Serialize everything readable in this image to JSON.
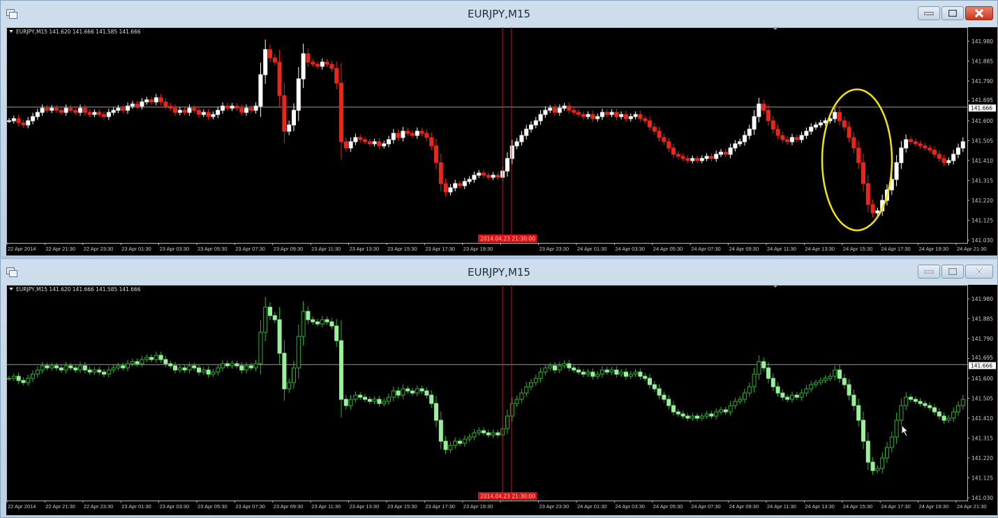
{
  "windows": [
    {
      "title": "EURJPY,M15",
      "active": true,
      "style": "red-white",
      "legend": "EURJPY,M15  141.620 141.666 141.585 141.666",
      "highlight_ellipse": true
    },
    {
      "title": "EURJPY,M15",
      "active": false,
      "style": "green",
      "legend": "EURJPY,M15  141.620 141.666 141.585 141.666",
      "highlight_ellipse": false
    }
  ],
  "icons": {
    "app": "chart-window-icon",
    "minimize": "minimize-icon",
    "maximize": "maximize-icon",
    "close": "close-icon",
    "cursor": "mouse-pointer-icon"
  },
  "colors": {
    "bull_top": "#ffffff",
    "bear_top": "#e8261a",
    "bull_bottom_border": "#2fb52f",
    "bear_bottom": "#98f098",
    "bid_line": "#9a9a9a",
    "cursor_line": "#d01010",
    "highlight": "#f2e600",
    "time_cursor_bg": "#e01010"
  },
  "chart_data": {
    "type": "candlestick",
    "symbol": "EURJPY",
    "timeframe": "M15",
    "ylim": [
      141.03,
      141.98
    ],
    "price_ticks": [
      "141.980",
      "141.885",
      "141.790",
      "141.695",
      "141.600",
      "141.505",
      "141.410",
      "141.315",
      "141.220",
      "141.125",
      "141.030"
    ],
    "bid": "141.666",
    "time_labels": [
      "22 Apr 2014",
      "22 Apr 21:30",
      "22 Apr 23:30",
      "23 Apr 01:30",
      "23 Apr 03:30",
      "23 Apr 05:30",
      "23 Apr 07:30",
      "23 Apr 09:30",
      "23 Apr 11:30",
      "23 Apr 13:30",
      "23 Apr 15:30",
      "23 Apr 17:30",
      "23 Apr 19:30",
      "",
      "23 Apr 23:30",
      "24 Apr 01:30",
      "24 Apr 03:30",
      "24 Apr 05:30",
      "24 Apr 07:30",
      "24 Apr 09:30",
      "24 Apr 11:30",
      "24 Apr 13:30",
      "24 Apr 15:30",
      "24 Apr 17:30",
      "24 Apr 19:30",
      "24 Apr 21:30"
    ],
    "time_cursor": "2014.04.23 21:30:00",
    "close": [
      141.6,
      141.61,
      141.59,
      141.58,
      141.6,
      141.62,
      141.64,
      141.66,
      141.65,
      141.66,
      141.65,
      141.64,
      141.66,
      141.65,
      141.64,
      141.66,
      141.64,
      141.63,
      141.64,
      141.63,
      141.62,
      141.64,
      141.65,
      141.66,
      141.65,
      141.67,
      141.68,
      141.67,
      141.69,
      141.7,
      141.69,
      141.71,
      141.69,
      141.67,
      141.66,
      141.64,
      141.65,
      141.64,
      141.66,
      141.65,
      141.63,
      141.64,
      141.62,
      141.63,
      141.65,
      141.67,
      141.66,
      141.67,
      141.66,
      141.64,
      141.66,
      141.65,
      141.67,
      141.82,
      141.94,
      141.9,
      141.88,
      141.72,
      141.55,
      141.58,
      141.65,
      141.8,
      141.92,
      141.88,
      141.87,
      141.86,
      141.88,
      141.87,
      141.85,
      141.78,
      141.5,
      141.47,
      141.5,
      141.52,
      141.51,
      141.5,
      141.49,
      141.5,
      141.48,
      141.49,
      141.51,
      141.54,
      141.52,
      141.55,
      141.54,
      141.53,
      141.55,
      141.54,
      141.52,
      141.48,
      141.4,
      141.3,
      141.26,
      141.28,
      141.3,
      141.29,
      141.31,
      141.32,
      141.34,
      141.35,
      141.34,
      141.33,
      141.34,
      141.33,
      141.36,
      141.42,
      141.48,
      141.5,
      141.53,
      141.56,
      141.58,
      141.6,
      141.63,
      141.65,
      141.66,
      141.64,
      141.66,
      141.67,
      141.65,
      141.64,
      141.63,
      141.62,
      141.63,
      141.61,
      141.62,
      141.64,
      141.63,
      141.64,
      141.62,
      141.63,
      141.61,
      141.62,
      141.63,
      141.61,
      141.6,
      141.57,
      141.55,
      141.52,
      141.5,
      141.47,
      141.44,
      141.43,
      141.42,
      141.41,
      141.42,
      141.41,
      141.42,
      141.43,
      141.42,
      141.44,
      141.45,
      141.44,
      141.47,
      141.49,
      141.5,
      141.53,
      141.56,
      141.62,
      141.68,
      141.65,
      141.6,
      141.56,
      141.53,
      141.51,
      141.5,
      141.52,
      141.51,
      141.53,
      141.55,
      141.57,
      141.58,
      141.59,
      141.6,
      141.61,
      141.64,
      141.6,
      141.57,
      141.52,
      141.47,
      141.4,
      141.3,
      141.2,
      141.16,
      141.17,
      141.22,
      141.27,
      141.32,
      141.4,
      141.47,
      141.51,
      141.5,
      141.49,
      141.48,
      141.47,
      141.46,
      141.44,
      141.42,
      141.4,
      141.41,
      141.44,
      141.47,
      141.5
    ]
  }
}
